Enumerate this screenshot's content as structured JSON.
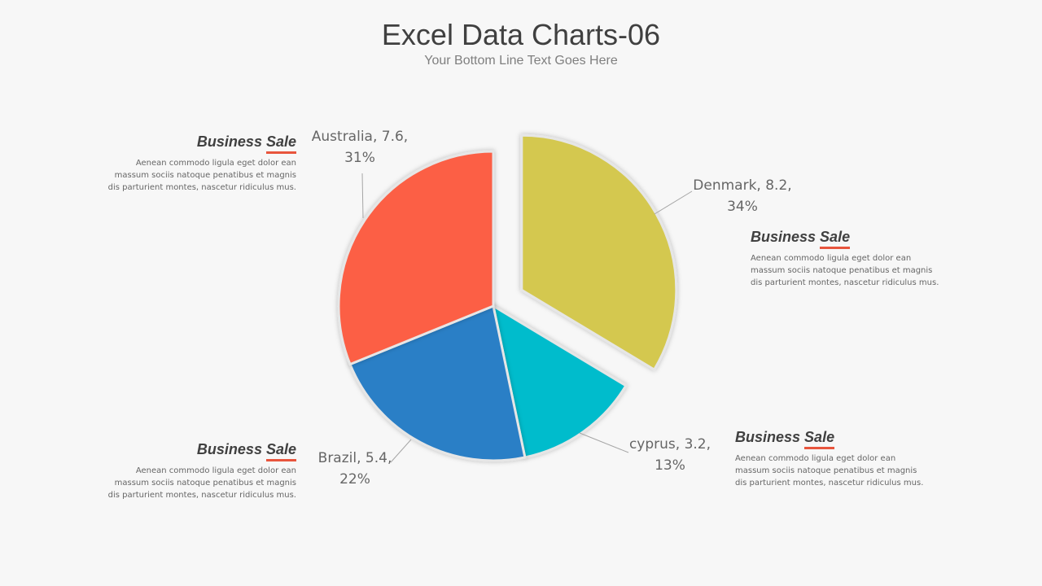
{
  "header": {
    "title": "Excel Data Charts-06",
    "subtitle": "Your Bottom Line Text Goes Here"
  },
  "chart_data": {
    "type": "pie",
    "categories": [
      "Denmark",
      "cyprus",
      "Brazil",
      "Australia"
    ],
    "values": [
      8.2,
      3.2,
      5.4,
      7.6
    ],
    "percents": [
      "34%",
      "13%",
      "22%",
      "31%"
    ],
    "labels": [
      {
        "line1": "Denmark, 8.2,",
        "line2": "34%"
      },
      {
        "line1": "cyprus, 3.2,",
        "line2": "13%"
      },
      {
        "line1": "Brazil, 5.4,",
        "line2": "22%"
      },
      {
        "line1": "Australia, 7.6,",
        "line2": "31%"
      }
    ],
    "colors": [
      "#d4c84f",
      "#06bccc",
      "#2b7fc6",
      "#fc5f44"
    ],
    "exploded": "Denmark"
  },
  "blocks": [
    {
      "title_a": "Business ",
      "title_b": "Sale",
      "text": "Aenean commodo ligula eget dolor ean massum sociis natoque penatibus et magnis dis parturient montes, nascetur ridiculus mus."
    },
    {
      "title_a": "Business ",
      "title_b": "Sale",
      "text": "Aenean commodo ligula eget dolor ean massum sociis natoque penatibus et magnis dis parturient montes, nascetur ridiculus mus."
    },
    {
      "title_a": "Business ",
      "title_b": "Sale",
      "text": "Aenean commodo ligula eget dolor ean massum sociis natoque penatibus et magnis dis parturient montes, nascetur ridiculus mus."
    },
    {
      "title_a": "Business ",
      "title_b": "Sale",
      "text": "Aenean commodo ligula eget dolor ean massum sociis natoque penatibus et magnis dis parturient montes, nascetur ridiculus mus."
    }
  ],
  "accent_color": "#e8553d"
}
